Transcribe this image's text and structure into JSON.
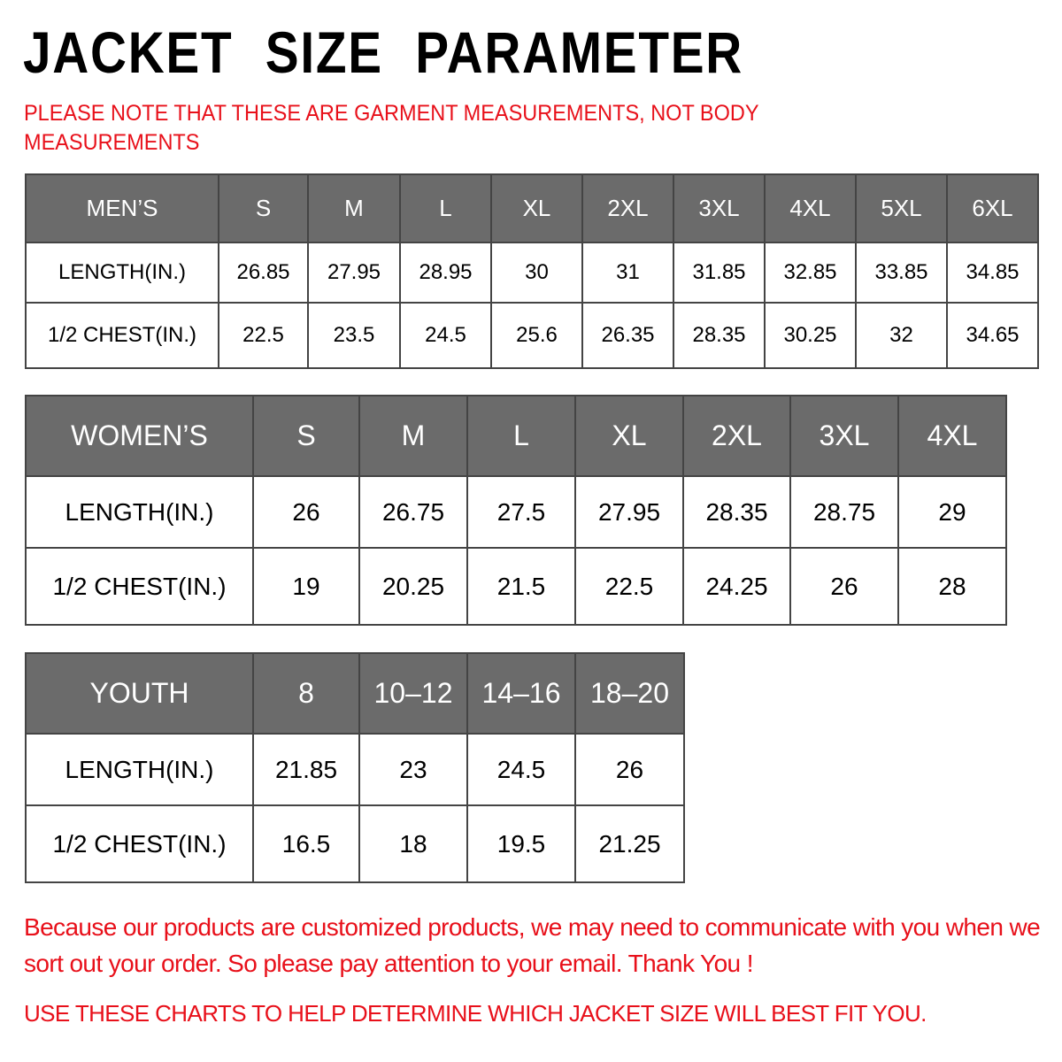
{
  "title": "JACKET SIZE PARAMETER",
  "note": "PLEASE NOTE THAT THESE ARE GARMENT MEASUREMENTS, NOT BODY MEASUREMENTS",
  "accent_color": "#e8101a",
  "header_color": "#6b6b6b",
  "tables": [
    {
      "name": "mens",
      "header": [
        "MEN’S",
        "S",
        "M",
        "L",
        "XL",
        "2XL",
        "3XL",
        "4XL",
        "5XL",
        "6XL"
      ],
      "rows": [
        [
          "LENGTH(IN.)",
          "26.85",
          "27.95",
          "28.95",
          "30",
          "31",
          "31.85",
          "32.85",
          "33.85",
          "34.85"
        ],
        [
          "1/2 CHEST(IN.)",
          "22.5",
          "23.5",
          "24.5",
          "25.6",
          "26.35",
          "28.35",
          "30.25",
          "32",
          "34.65"
        ]
      ]
    },
    {
      "name": "womens",
      "header": [
        "WOMEN’S",
        "S",
        "M",
        "L",
        "XL",
        "2XL",
        "3XL",
        "4XL"
      ],
      "rows": [
        [
          "LENGTH(IN.)",
          "26",
          "26.75",
          "27.5",
          "27.95",
          "28.35",
          "28.75",
          "29"
        ],
        [
          "1/2 CHEST(IN.)",
          "19",
          "20.25",
          "21.5",
          "22.5",
          "24.25",
          "26",
          "28"
        ]
      ]
    },
    {
      "name": "youth",
      "header": [
        "YOUTH",
        "8",
        "10–12",
        "14–16",
        "18–20"
      ],
      "rows": [
        [
          "LENGTH(IN.)",
          "21.85",
          "23",
          "24.5",
          "26"
        ],
        [
          "1/2 CHEST(IN.)",
          "16.5",
          "18",
          "19.5",
          "21.25"
        ]
      ]
    }
  ],
  "message": "Because our products are customized products, we may need to communicate with you when we sort out your order. So please pay attention to your email. Thank You !",
  "footer": "USE THESE CHARTS TO HELP DETERMINE WHICH JACKET SIZE WILL BEST FIT YOU."
}
